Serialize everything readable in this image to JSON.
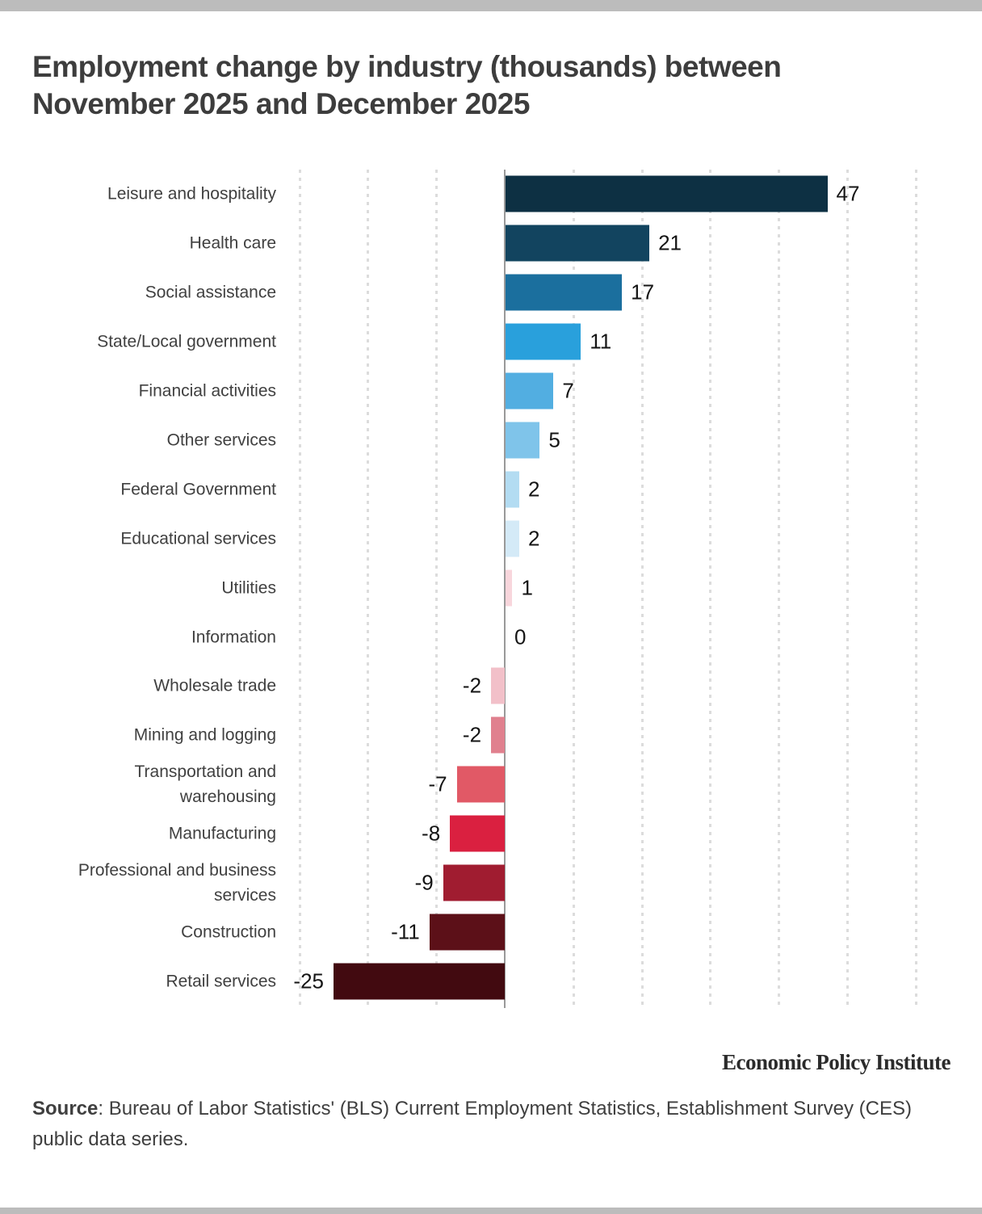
{
  "page": {
    "title_lines": [
      "Employment change by industry (thousands) between",
      "November 2025 and December 2025"
    ],
    "branding": "Economic Policy Institute",
    "source_label": "Source",
    "source_text": ": Bureau of Labor Statistics' (BLS) Current Employment Statistics, Establishment Survey (CES) public data series.",
    "colors": {
      "top_strip": "#bcbcbc",
      "bottom_strip": "#bcbcbc",
      "title_text": "#3d3d3d",
      "category_label_text": "#404040",
      "value_label_text": "#151515",
      "gridline": "#dcdcdc",
      "zero_axis": "#999999"
    }
  },
  "chart_data": {
    "type": "bar",
    "orientation": "horizontal",
    "title": "Employment change by industry (thousands) between November 2025 and December 2025",
    "xlabel": "",
    "ylabel": "",
    "xlim": [
      -30,
      60
    ],
    "grid_step": 10,
    "grid": true,
    "categories": [
      "Leisure and hospitality",
      "Health care",
      "Social assistance",
      "State/Local government",
      "Financial activities",
      "Other services",
      "Federal Government",
      "Educational services",
      "Utilities",
      "Information",
      "Wholesale trade",
      "Mining and logging",
      "Transportation and warehousing",
      "Manufacturing",
      "Professional and business services",
      "Construction",
      "Retail services"
    ],
    "values": [
      47,
      21,
      17,
      11,
      7,
      5,
      2,
      2,
      1,
      0,
      -2,
      -2,
      -7,
      -8,
      -9,
      -11,
      -25
    ],
    "bar_colors": [
      "#0d3043",
      "#12445f",
      "#1b6f9e",
      "#29a0dc",
      "#52aee1",
      "#7fc4ea",
      "#b3dcf2",
      "#d4eaf7",
      "#f8d6dc",
      "#ffffff",
      "#f2c0c9",
      "#e0808e",
      "#e15966",
      "#da2040",
      "#a01c30",
      "#5c1018",
      "#420a10"
    ]
  }
}
